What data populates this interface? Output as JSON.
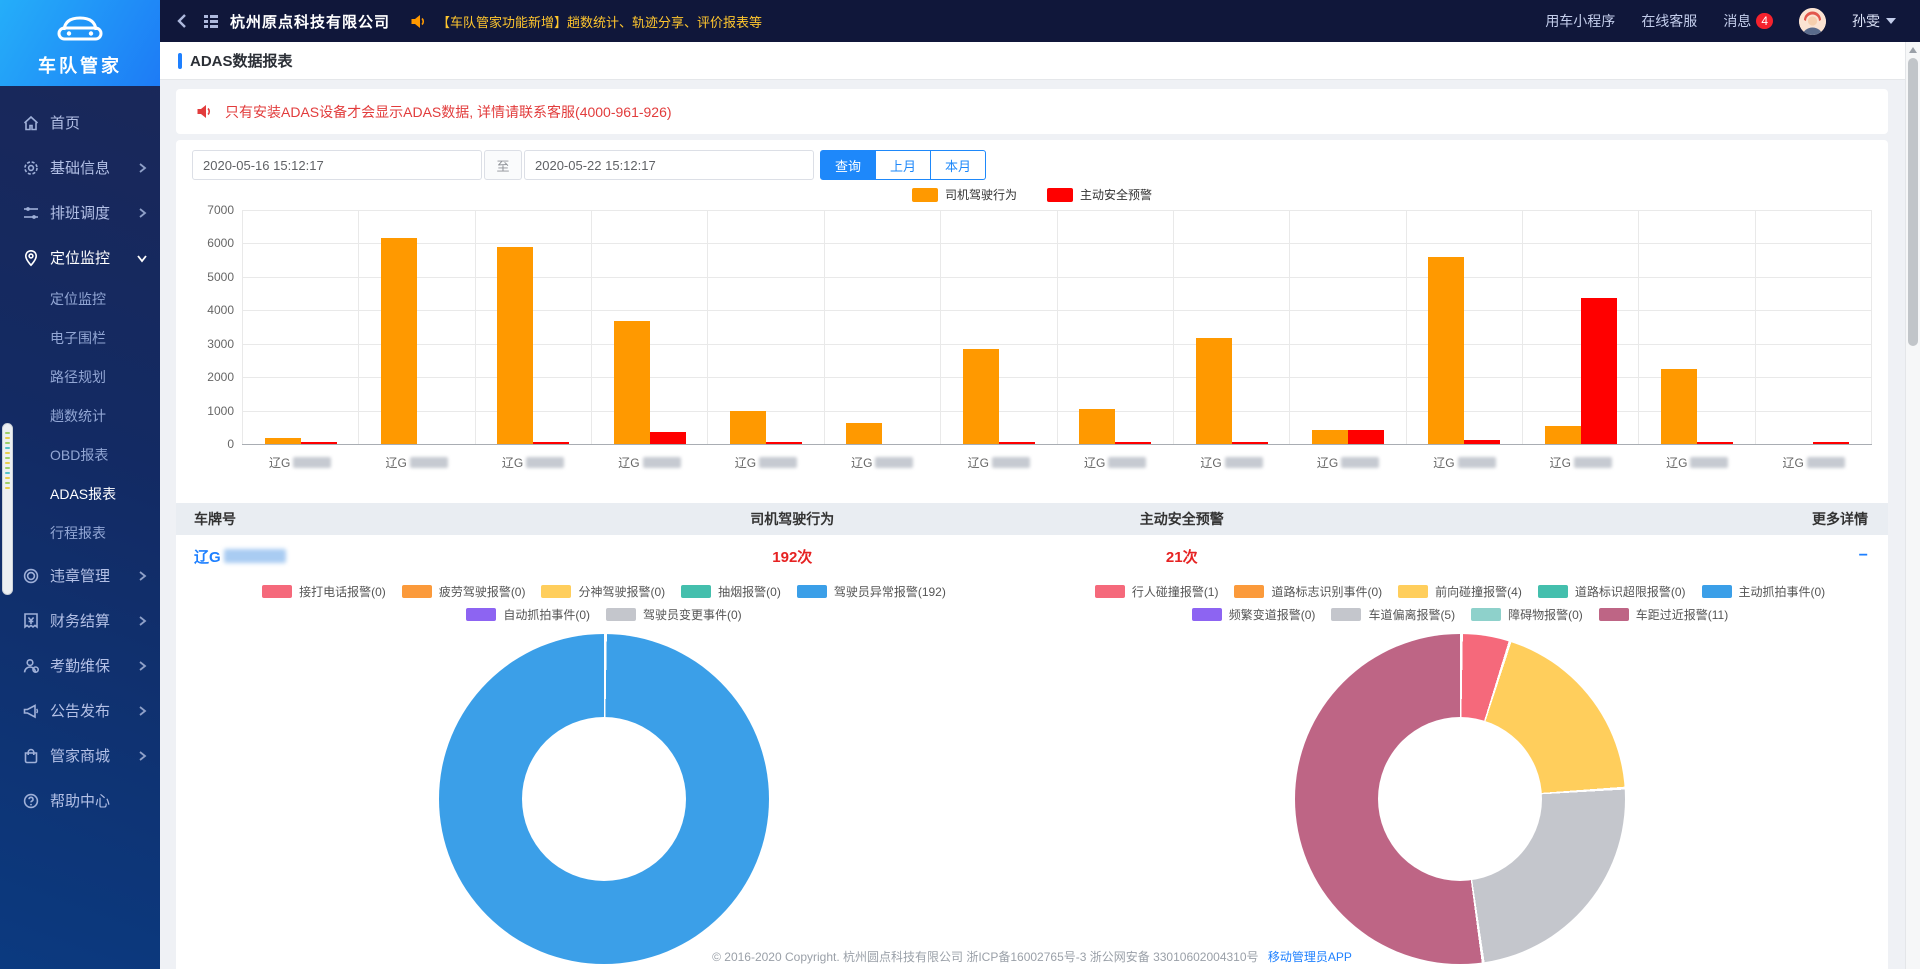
{
  "navbar": {
    "company": "杭州原点科技有限公司",
    "announcement": "【车队管家功能新增】趟数统计、轨迹分享、评价报表等",
    "links": {
      "mini_program": "用车小程序",
      "support": "在线客服",
      "messages": "消息"
    },
    "message_badge": "4",
    "username": "孙雯"
  },
  "sidebar": {
    "app_name": "车队管家",
    "items": [
      {
        "id": "home",
        "label": "首页",
        "icon": "home",
        "expandable": false
      },
      {
        "id": "basic-info",
        "label": "基础信息",
        "icon": "gear",
        "expandable": true
      },
      {
        "id": "scheduling",
        "label": "排班调度",
        "icon": "sliders",
        "expandable": true
      },
      {
        "id": "location-monitor",
        "label": "定位监控",
        "icon": "pin",
        "expandable": true,
        "expanded": true,
        "active": true,
        "children": [
          {
            "id": "location-monitor",
            "label": "定位监控"
          },
          {
            "id": "geo-fence",
            "label": "电子围栏"
          },
          {
            "id": "route-plan",
            "label": "路径规划"
          },
          {
            "id": "trip-stats",
            "label": "趟数统计"
          },
          {
            "id": "obd-report",
            "label": "OBD报表"
          },
          {
            "id": "adas-report",
            "label": "ADAS报表",
            "active": true
          },
          {
            "id": "itinerary-report",
            "label": "行程报表"
          }
        ]
      },
      {
        "id": "violation",
        "label": "违章管理",
        "icon": "seal",
        "expandable": true
      },
      {
        "id": "finance",
        "label": "财务结算",
        "icon": "yuan",
        "expandable": true
      },
      {
        "id": "attendance",
        "label": "考勤维保",
        "icon": "person",
        "expandable": true
      },
      {
        "id": "announcement",
        "label": "公告发布",
        "icon": "megaphone",
        "expandable": true
      },
      {
        "id": "mall",
        "label": "管家商城",
        "icon": "bag",
        "expandable": true
      },
      {
        "id": "help-center",
        "label": "帮助中心",
        "icon": "question",
        "expandable": false
      }
    ]
  },
  "page": {
    "title": "ADAS数据报表",
    "notice": "只有安装ADAS设备才会显示ADAS数据, 详情请联系客服(4000-961-926)"
  },
  "filters": {
    "start": "2020-05-16 15:12:17",
    "to_label": "至",
    "end": "2020-05-22 15:12:17",
    "search_label": "查询",
    "prev_month_label": "上月",
    "this_month_label": "本月"
  },
  "table": {
    "headers": [
      "车牌号",
      "司机驾驶行为",
      "主动安全预警",
      "更多详情"
    ],
    "row": {
      "plate_prefix": "辽G",
      "driver_count": "192次",
      "safety_count": "21次",
      "collapse_label": "−"
    }
  },
  "footer": {
    "copyright": "© 2016-2020 Copyright. 杭州圆点科技有限公司 浙ICP备16002765号-3 浙公网安备 33010602004310号",
    "app_link": "移动管理员APP"
  },
  "colors": {
    "accent": "#1e80ff",
    "bar_orange": "#ff9900",
    "bar_red": "#ff0000",
    "count_red": "#e62222"
  },
  "chart_data": [
    {
      "type": "bar",
      "title": "",
      "categories": [
        "辽G****",
        "辽G****",
        "辽G****",
        "辽G****",
        "辽G****",
        "辽G****",
        "辽G****",
        "辽G****",
        "辽G****",
        "辽G****",
        "辽G****",
        "辽G****",
        "辽G****",
        "辽G****"
      ],
      "categories_note": "license plates blurred in source image",
      "series": [
        {
          "name": "司机驾驶行为",
          "color": "#ff9900",
          "values": [
            190,
            6150,
            5900,
            3680,
            980,
            620,
            2850,
            1050,
            3180,
            430,
            5580,
            530,
            2230,
            0
          ]
        },
        {
          "name": "主动安全预警",
          "color": "#ff0000",
          "values": [
            30,
            0,
            10,
            370,
            10,
            0,
            10,
            10,
            10,
            430,
            130,
            4370,
            40,
            30
          ]
        }
      ],
      "xlabel": "",
      "ylabel": "",
      "ylim": [
        0,
        7000
      ],
      "ytick_step": 1000,
      "grid": true,
      "legend_position": "top"
    },
    {
      "type": "pie",
      "title": "司机驾驶行为",
      "total_label": "192次",
      "slices": [
        {
          "label": "接打电话报警",
          "value": 0,
          "color": "#f5697b"
        },
        {
          "label": "疲劳驾驶报警",
          "value": 0,
          "color": "#fb9a3b"
        },
        {
          "label": "分神驾驶报警",
          "value": 0,
          "color": "#ffce5c"
        },
        {
          "label": "抽烟报警",
          "value": 0,
          "color": "#44bfad"
        },
        {
          "label": "驾驶员异常报警",
          "value": 192,
          "color": "#3b9fe8"
        },
        {
          "label": "自动抓拍事件",
          "value": 0,
          "color": "#8d64f2"
        },
        {
          "label": "驾驶员变更事件",
          "value": 0,
          "color": "#c4c6cc"
        }
      ]
    },
    {
      "type": "pie",
      "title": "主动安全预警",
      "total_label": "21次",
      "slices": [
        {
          "label": "行人碰撞报警",
          "value": 1,
          "color": "#f5697b"
        },
        {
          "label": "道路标志识别事件",
          "value": 0,
          "color": "#fb9a3b"
        },
        {
          "label": "前向碰撞报警",
          "value": 4,
          "color": "#ffce5c"
        },
        {
          "label": "道路标识超限报警",
          "value": 0,
          "color": "#44bfad"
        },
        {
          "label": "主动抓拍事件",
          "value": 0,
          "color": "#3b9fe8"
        },
        {
          "label": "频繁变道报警",
          "value": 0,
          "color": "#8d64f2"
        },
        {
          "label": "车道偏离报警",
          "value": 5,
          "color": "#c4c6cc"
        },
        {
          "label": "障碍物报警",
          "value": 0,
          "color": "#8ed1cb"
        },
        {
          "label": "车距过近报警",
          "value": 11,
          "color": "#be6585"
        }
      ]
    }
  ]
}
